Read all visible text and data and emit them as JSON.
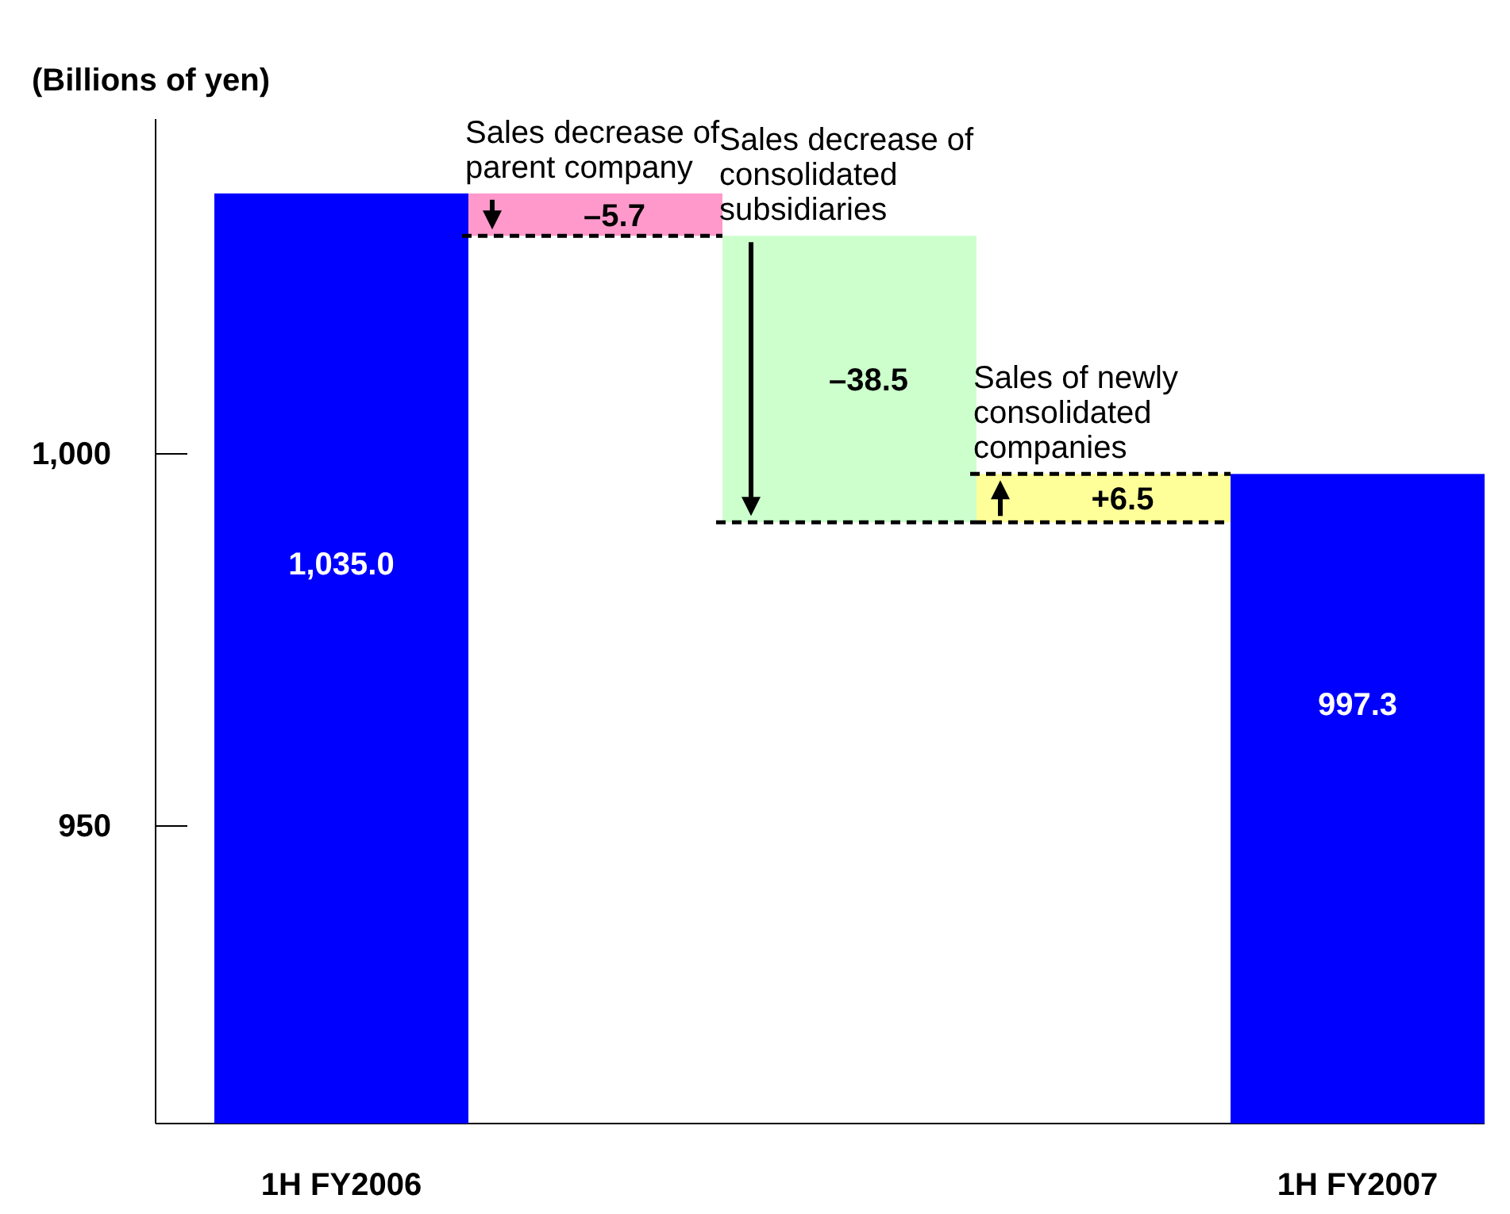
{
  "chart_data": {
    "type": "bar",
    "ylabel": "(Billions of yen)",
    "categories": [
      "1H FY2006",
      null,
      null,
      null,
      "1H FY2007"
    ],
    "values": [
      1035.0,
      -5.7,
      -38.5,
      6.5,
      997.3
    ],
    "base": [
      null,
      1035.0,
      1029.3,
      990.8,
      null
    ],
    "colors": [
      "#0000ff",
      "#ff99cc",
      "#ccffcc",
      "#ffff99",
      "#0000ff"
    ],
    "value_labels": [
      "1,035.0",
      "–5.7",
      "–38.5",
      "+6.5",
      "997.3"
    ],
    "annotations": [
      {
        "text": "Sales decrease of parent company",
        "y": 1035.0
      },
      {
        "text": "Sales decrease of consolidated subsidiaries",
        "y": 1029.3
      },
      {
        "text": "Sales of newly consolidated companies",
        "y": 997.3
      }
    ],
    "ylim": [
      910,
      1045
    ],
    "yticks": [
      {
        "value": 950,
        "label": "950"
      },
      {
        "value": 1000,
        "label": "1,000"
      }
    ],
    "grid": false
  }
}
